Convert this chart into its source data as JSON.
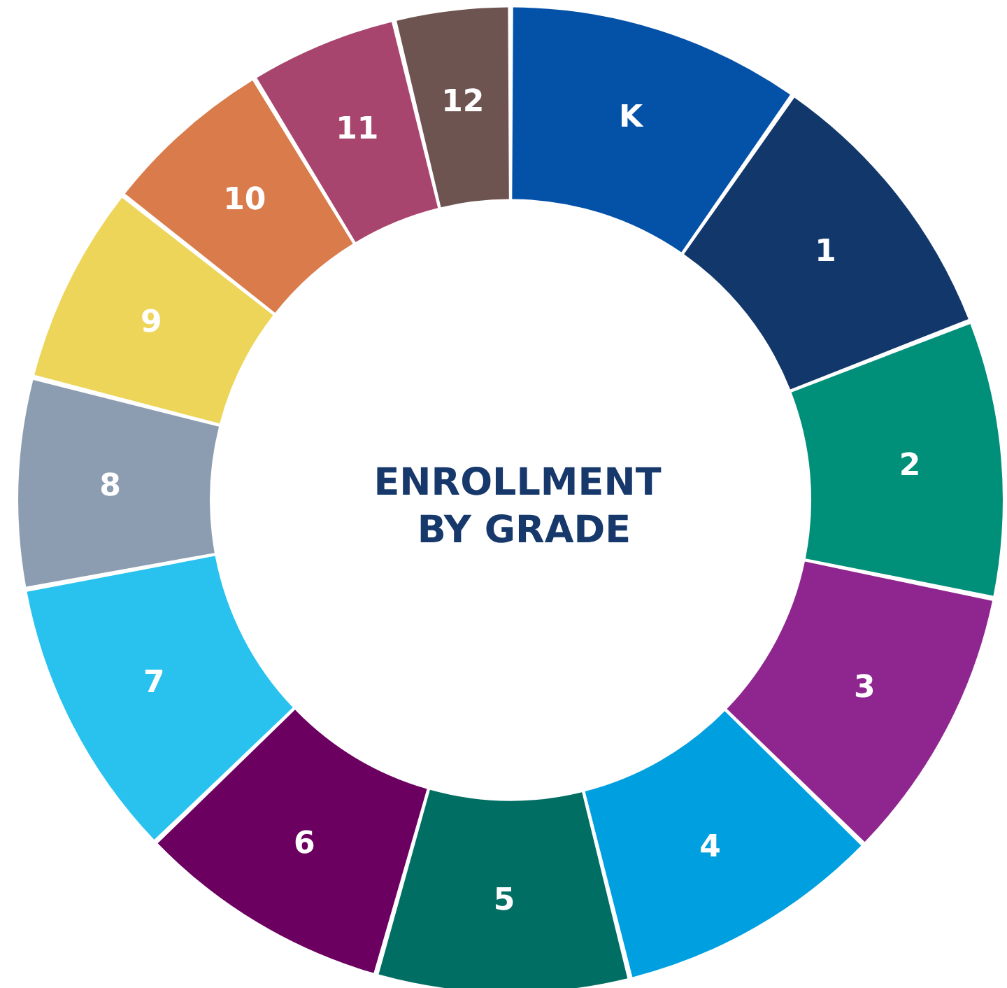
{
  "chart_data": {
    "type": "donut",
    "title": "ENROLLMENT BY GRADE",
    "categories": [
      "K",
      "1",
      "2",
      "3",
      "4",
      "5",
      "6",
      "7",
      "8",
      "9",
      "10",
      "11",
      "12"
    ],
    "values": [
      9.7,
      9.4,
      9.1,
      9.1,
      8.8,
      8.3,
      8.4,
      9.3,
      6.9,
      6.6,
      5.7,
      4.9,
      3.8
    ],
    "colors": [
      "#0451a8",
      "#12386b",
      "#008f78",
      "#8f268f",
      "#009fe0",
      "#006e63",
      "#6b0060",
      "#29c2ef",
      "#8c9db1",
      "#edd55a",
      "#d97b4b",
      "#a8456e",
      "#6e5450"
    ],
    "legend": false
  }
}
